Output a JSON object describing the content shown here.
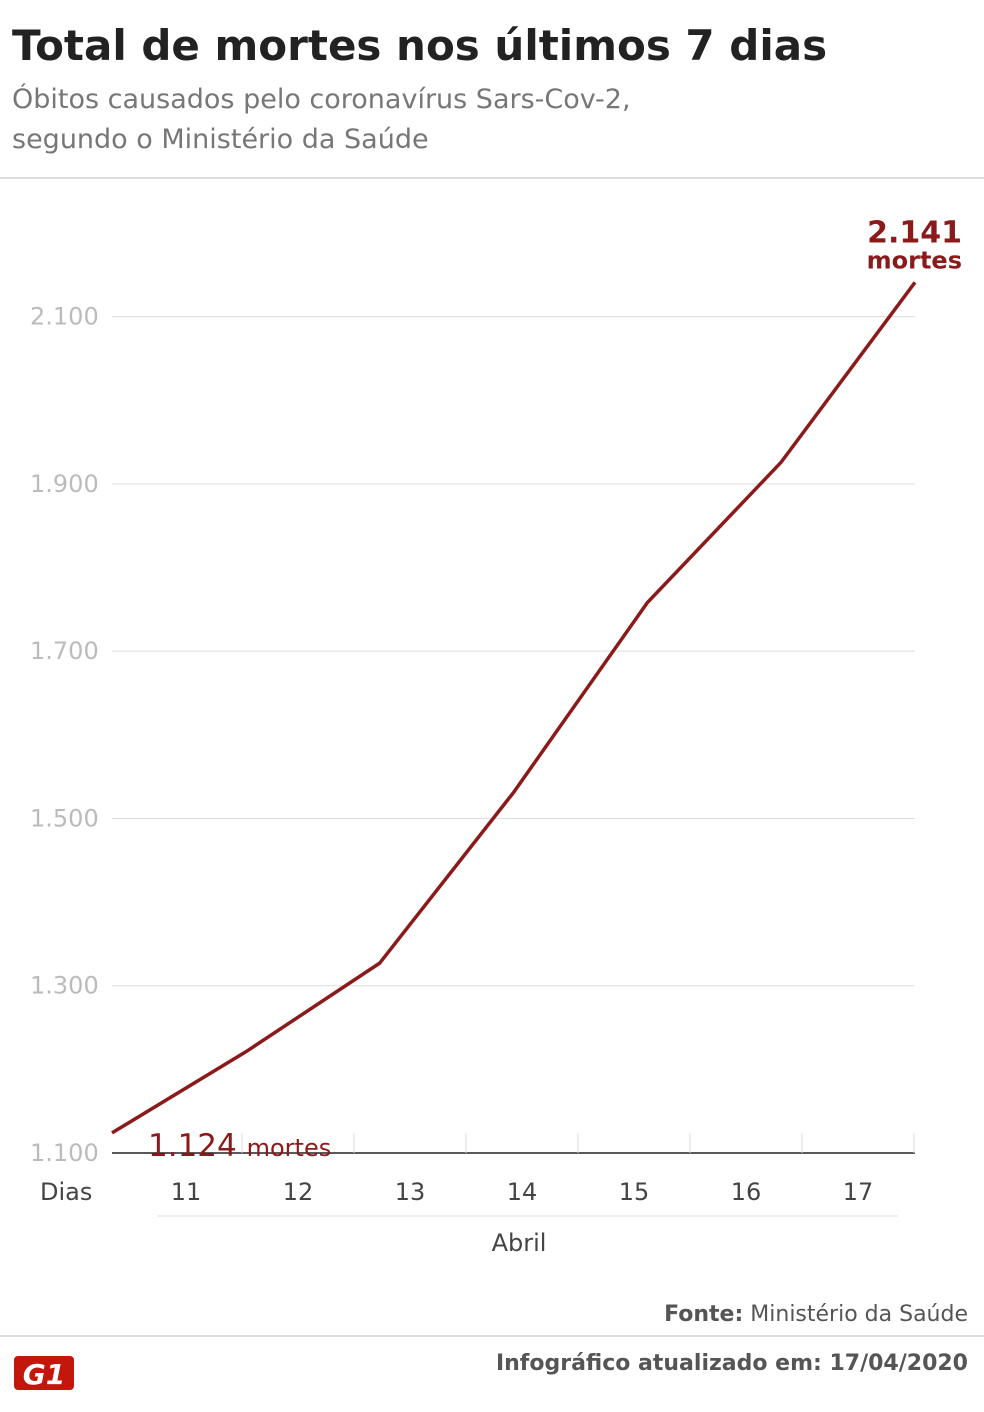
{
  "chart_data": {
    "type": "line",
    "title": "Total de mortes nos últimos 7 dias",
    "subtitle": [
      "Óbitos causados pelo coronavírus Sars-Cov-2,",
      "segundo o Ministério da Saúde"
    ],
    "x_label": "Dias",
    "x_group_label": "Abril",
    "categories": [
      "11",
      "12",
      "13",
      "14",
      "15",
      "16",
      "17"
    ],
    "series": [
      {
        "name": "Mortes",
        "color": "#8b1a1a",
        "values": [
          1124,
          1221,
          1327,
          1531,
          1758,
          1926,
          2141
        ],
        "value_labels": [
          "1.124",
          null,
          null,
          null,
          null,
          null,
          "2.141"
        ]
      }
    ],
    "value_label_unit": "mortes",
    "ylim": [
      1100,
      2200
    ],
    "yticks": [
      {
        "value": 1100,
        "label": "1.100"
      },
      {
        "value": 1300,
        "label": "1.300"
      },
      {
        "value": 1500,
        "label": "1.500"
      },
      {
        "value": 1700,
        "label": "1.700"
      },
      {
        "value": 1900,
        "label": "1.900"
      },
      {
        "value": 2100,
        "label": "2.100"
      }
    ],
    "grid": true
  },
  "footer": {
    "source_label": "Fonte:",
    "source": "Ministério da Saúde",
    "updated": "Infográfico atualizado em: 17/04/2020",
    "logo": "G1"
  }
}
